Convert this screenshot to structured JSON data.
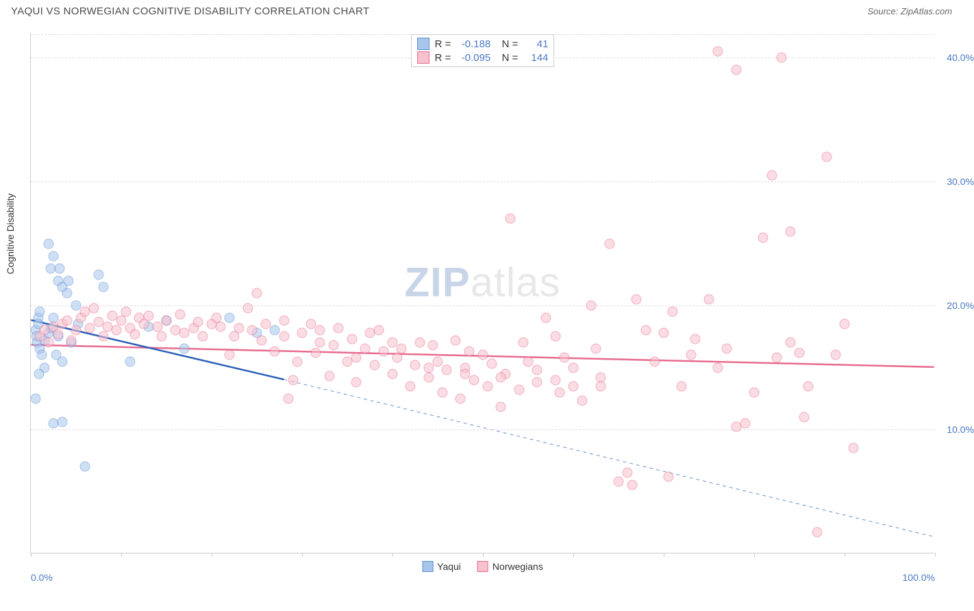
{
  "title": "YAQUI VS NORWEGIAN COGNITIVE DISABILITY CORRELATION CHART",
  "source": "Source: ZipAtlas.com",
  "ylabel": "Cognitive Disability",
  "watermark": {
    "part1": "ZIP",
    "part2": "atlas"
  },
  "chart": {
    "type": "scatter",
    "xlim": [
      0,
      100
    ],
    "ylim": [
      0,
      42
    ],
    "background_color": "#ffffff",
    "grid_color": "#dddddd",
    "yticks": [
      {
        "value": 10,
        "label": "10.0%"
      },
      {
        "value": 20,
        "label": "20.0%"
      },
      {
        "value": 30,
        "label": "30.0%"
      },
      {
        "value": 40,
        "label": "40.0%"
      }
    ],
    "xticks": [
      0,
      10,
      20,
      30,
      40,
      50,
      60,
      70,
      80,
      90,
      100
    ],
    "xtick_labels": [
      {
        "value": 0,
        "label": "0.0%"
      },
      {
        "value": 100,
        "label": "100.0%"
      }
    ],
    "series": [
      {
        "name": "Yaqui",
        "color_fill": "#a8c5ec",
        "color_stroke": "#5b8fd1",
        "fill_opacity": 0.55,
        "R": "-0.188",
        "N": "41",
        "trendline": {
          "x1": 0,
          "y1": 18.8,
          "x2": 28,
          "y2": 14.0,
          "solid_end_x": 28
        },
        "trendline_extrap": {
          "x1": 28,
          "y1": 14.0,
          "x2": 100,
          "y2": 1.3
        },
        "points": [
          [
            0.5,
            18
          ],
          [
            0.6,
            17.5
          ],
          [
            0.8,
            19
          ],
          [
            0.7,
            17
          ],
          [
            2,
            25
          ],
          [
            2.2,
            23
          ],
          [
            2.5,
            24
          ],
          [
            3,
            22
          ],
          [
            3.2,
            23
          ],
          [
            3.5,
            21.5
          ],
          [
            4,
            21
          ],
          [
            4.2,
            22
          ],
          [
            5,
            20
          ],
          [
            5.2,
            18.5
          ],
          [
            1,
            16.5
          ],
          [
            1.2,
            16
          ],
          [
            1.5,
            17.2
          ],
          [
            2,
            17.8
          ],
          [
            2.3,
            18.2
          ],
          [
            0.8,
            18.5
          ],
          [
            1,
            19.5
          ],
          [
            2.5,
            19
          ],
          [
            3,
            17.5
          ],
          [
            4.5,
            17
          ],
          [
            3.5,
            15.5
          ],
          [
            2.8,
            16
          ],
          [
            1.5,
            15
          ],
          [
            0.9,
            14.5
          ],
          [
            2.5,
            10.5
          ],
          [
            3.5,
            10.6
          ],
          [
            0.5,
            12.5
          ],
          [
            6,
            7
          ],
          [
            8,
            21.5
          ],
          [
            7.5,
            22.5
          ],
          [
            11,
            15.5
          ],
          [
            13,
            18.3
          ],
          [
            15,
            18.8
          ],
          [
            17,
            16.5
          ],
          [
            22,
            19
          ],
          [
            25,
            17.8
          ],
          [
            27,
            18
          ]
        ]
      },
      {
        "name": "Norwegians",
        "color_fill": "#f7c1cd",
        "color_stroke": "#e86a8f",
        "fill_opacity": 0.55,
        "R": "-0.095",
        "N": "144",
        "trendline": {
          "x1": 0,
          "y1": 16.8,
          "x2": 100,
          "y2": 15.0
        },
        "points": [
          [
            1,
            17.5
          ],
          [
            1.5,
            18
          ],
          [
            2,
            17
          ],
          [
            2.5,
            18.3
          ],
          [
            3,
            17.7
          ],
          [
            3.5,
            18.5
          ],
          [
            4,
            18.8
          ],
          [
            4.5,
            17.2
          ],
          [
            5,
            18
          ],
          [
            5.5,
            19
          ],
          [
            6,
            19.5
          ],
          [
            6.5,
            18.2
          ],
          [
            7,
            19.8
          ],
          [
            7.5,
            18.7
          ],
          [
            8,
            17.5
          ],
          [
            8.5,
            18.3
          ],
          [
            9,
            19.2
          ],
          [
            9.5,
            18
          ],
          [
            10,
            18.8
          ],
          [
            10.5,
            19.5
          ],
          [
            11,
            18.2
          ],
          [
            11.5,
            17.7
          ],
          [
            12,
            19
          ],
          [
            12.5,
            18.5
          ],
          [
            13,
            19.2
          ],
          [
            14,
            18.3
          ],
          [
            14.5,
            17.5
          ],
          [
            15,
            18.8
          ],
          [
            16,
            18
          ],
          [
            16.5,
            19.3
          ],
          [
            17,
            17.8
          ],
          [
            18,
            18.2
          ],
          [
            18.5,
            18.7
          ],
          [
            19,
            17.5
          ],
          [
            20,
            18.5
          ],
          [
            20.5,
            19
          ],
          [
            21,
            18.3
          ],
          [
            22,
            16
          ],
          [
            22.5,
            17.5
          ],
          [
            23,
            18.2
          ],
          [
            24,
            19.8
          ],
          [
            24.5,
            18
          ],
          [
            25,
            21
          ],
          [
            25.5,
            17.2
          ],
          [
            26,
            18.5
          ],
          [
            27,
            16.3
          ],
          [
            28,
            18.8
          ],
          [
            28.5,
            12.5
          ],
          [
            29,
            14
          ],
          [
            29.5,
            15.5
          ],
          [
            30,
            17.8
          ],
          [
            31,
            18.5
          ],
          [
            31.5,
            16.2
          ],
          [
            32,
            17
          ],
          [
            33,
            14.3
          ],
          [
            33.5,
            16.8
          ],
          [
            34,
            18.2
          ],
          [
            35,
            15.5
          ],
          [
            35.5,
            17.3
          ],
          [
            36,
            13.8
          ],
          [
            37,
            16.5
          ],
          [
            37.5,
            17.8
          ],
          [
            38,
            15.2
          ],
          [
            38.5,
            18
          ],
          [
            39,
            16.3
          ],
          [
            40,
            14.5
          ],
          [
            40.5,
            15.8
          ],
          [
            41,
            16.5
          ],
          [
            42,
            13.5
          ],
          [
            42.5,
            15.2
          ],
          [
            43,
            17
          ],
          [
            44,
            14.2
          ],
          [
            44.5,
            16.8
          ],
          [
            45,
            15.5
          ],
          [
            45.5,
            13
          ],
          [
            46,
            14.8
          ],
          [
            47,
            17.2
          ],
          [
            47.5,
            12.5
          ],
          [
            48,
            15
          ],
          [
            48.5,
            16.3
          ],
          [
            49,
            14
          ],
          [
            50,
            16
          ],
          [
            50.5,
            13.5
          ],
          [
            51,
            15.3
          ],
          [
            52,
            11.8
          ],
          [
            52.5,
            14.5
          ],
          [
            53,
            27
          ],
          [
            54,
            13.2
          ],
          [
            54.5,
            17
          ],
          [
            55,
            15.5
          ],
          [
            56,
            14.8
          ],
          [
            57,
            19
          ],
          [
            58,
            17.5
          ],
          [
            58.5,
            13
          ],
          [
            59,
            15.8
          ],
          [
            60,
            15
          ],
          [
            61,
            12.3
          ],
          [
            62,
            20
          ],
          [
            62.5,
            16.5
          ],
          [
            63,
            14.2
          ],
          [
            64,
            25
          ],
          [
            65,
            5.8
          ],
          [
            66,
            6.5
          ],
          [
            67,
            20.5
          ],
          [
            68,
            18
          ],
          [
            69,
            15.5
          ],
          [
            70,
            17.8
          ],
          [
            71,
            19.5
          ],
          [
            72,
            13.5
          ],
          [
            73,
            16
          ],
          [
            75,
            20.5
          ],
          [
            76,
            15
          ],
          [
            77,
            16.5
          ],
          [
            78,
            10.2
          ],
          [
            79,
            10.5
          ],
          [
            80,
            13
          ],
          [
            81,
            25.5
          ],
          [
            82,
            30.5
          ],
          [
            82.5,
            15.8
          ],
          [
            83,
            40
          ],
          [
            84,
            17
          ],
          [
            85,
            16.2
          ],
          [
            85.5,
            11
          ],
          [
            86,
            13.5
          ],
          [
            87,
            1.7
          ],
          [
            88,
            32
          ],
          [
            89,
            16
          ],
          [
            90,
            18.5
          ],
          [
            91,
            8.5
          ],
          [
            76,
            40.5
          ],
          [
            78,
            39
          ],
          [
            84,
            26
          ],
          [
            63,
            13.5
          ],
          [
            58,
            14
          ],
          [
            60,
            13.5
          ],
          [
            56,
            13.8
          ],
          [
            52,
            14.2
          ],
          [
            48,
            14.5
          ],
          [
            44,
            15
          ],
          [
            40,
            17
          ],
          [
            36,
            15.8
          ],
          [
            32,
            18
          ],
          [
            28,
            17.5
          ],
          [
            70.5,
            6.2
          ],
          [
            66.5,
            5.5
          ],
          [
            73.5,
            17.3
          ]
        ]
      }
    ]
  },
  "legend_bottom": [
    {
      "label": "Yaqui",
      "fill": "#a8c5ec",
      "stroke": "#5b8fd1"
    },
    {
      "label": "Norwegians",
      "fill": "#f7c1cd",
      "stroke": "#e86a8f"
    }
  ]
}
